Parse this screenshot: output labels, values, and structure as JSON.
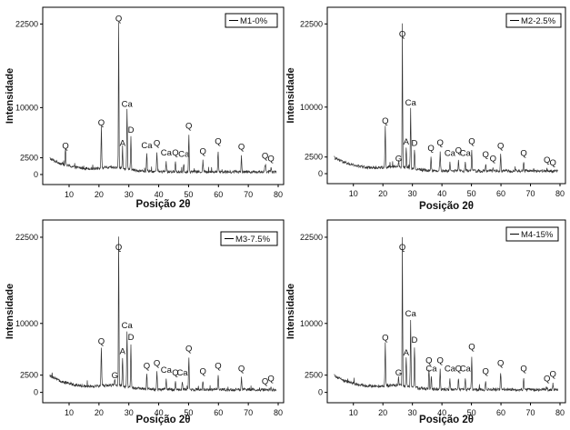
{
  "chart_data": [
    {
      "type": "line",
      "legend": "M1-0%",
      "xlabel": "Posição 2θ",
      "ylabel": "Intensidade",
      "xlim": [
        3,
        80
      ],
      "ylim": [
        -1500,
        25000
      ],
      "x_ticks": [
        10,
        20,
        30,
        40,
        50,
        60,
        70,
        80
      ],
      "y_ticks": [
        0,
        2500,
        10000,
        22500
      ],
      "series": [
        {
          "name": "M1-0%",
          "x": [],
          "y": []
        }
      ],
      "peaks": [
        {
          "x": 8.8,
          "y": 3300,
          "label": "Q"
        },
        {
          "x": 20.8,
          "y": 6800,
          "label": "Q"
        },
        {
          "x": 26.6,
          "y": 22500,
          "label": "Q"
        },
        {
          "x": 27.9,
          "y": 3700,
          "label": "A"
        },
        {
          "x": 29.4,
          "y": 9600,
          "label": "Ca"
        },
        {
          "x": 30.7,
          "y": 5700,
          "label": "D"
        },
        {
          "x": 36.0,
          "y": 3400,
          "label": "Ca"
        },
        {
          "x": 39.4,
          "y": 3700,
          "label": "Q"
        },
        {
          "x": 42.5,
          "y": 2300,
          "label": "Ca"
        },
        {
          "x": 45.6,
          "y": 2300,
          "label": "Q"
        },
        {
          "x": 48.4,
          "y": 2100,
          "label": "Ca"
        },
        {
          "x": 50.1,
          "y": 6300,
          "label": "Q"
        },
        {
          "x": 54.8,
          "y": 2500,
          "label": "Q"
        },
        {
          "x": 59.9,
          "y": 4000,
          "label": "Q"
        },
        {
          "x": 67.7,
          "y": 3200,
          "label": "Q"
        },
        {
          "x": 75.6,
          "y": 1800,
          "label": "Q"
        },
        {
          "x": 77.6,
          "y": 1400,
          "label": "Q"
        }
      ]
    },
    {
      "type": "line",
      "legend": "M2-2.5%",
      "xlabel": "Posição 2θ",
      "ylabel": "Intensidade",
      "xlim": [
        3,
        80
      ],
      "ylim": [
        -1500,
        25000
      ],
      "x_ticks": [
        10,
        20,
        30,
        40,
        50,
        60,
        70,
        80
      ],
      "y_ticks": [
        0,
        2500,
        10000,
        22500
      ],
      "series": [
        {
          "name": "M2-2.5%",
          "x": [],
          "y": []
        }
      ],
      "peaks": [
        {
          "x": 20.8,
          "y": 7000,
          "label": "Q"
        },
        {
          "x": 25.3,
          "y": 1300,
          "label": "G"
        },
        {
          "x": 26.6,
          "y": 22500,
          "label": "Q"
        },
        {
          "x": 27.9,
          "y": 3800,
          "label": "A"
        },
        {
          "x": 29.4,
          "y": 9700,
          "label": "Ca"
        },
        {
          "x": 30.7,
          "y": 3600,
          "label": "D"
        },
        {
          "x": 36.3,
          "y": 2900,
          "label": "Q"
        },
        {
          "x": 39.4,
          "y": 3700,
          "label": "Q"
        },
        {
          "x": 42.7,
          "y": 2100,
          "label": "Ca"
        },
        {
          "x": 45.6,
          "y": 2500,
          "label": "Q"
        },
        {
          "x": 47.9,
          "y": 2100,
          "label": "Ca"
        },
        {
          "x": 50.1,
          "y": 3900,
          "label": "Q"
        },
        {
          "x": 54.8,
          "y": 1900,
          "label": "Q"
        },
        {
          "x": 57.3,
          "y": 1300,
          "label": "Q"
        },
        {
          "x": 59.9,
          "y": 3200,
          "label": "Q"
        },
        {
          "x": 67.7,
          "y": 2100,
          "label": "Q"
        },
        {
          "x": 75.6,
          "y": 1100,
          "label": "Q"
        },
        {
          "x": 77.6,
          "y": 700,
          "label": "Q"
        }
      ]
    },
    {
      "type": "line",
      "legend": "M3-7.5%",
      "xlabel": "Posição 2θ",
      "ylabel": "Intensidade",
      "xlim": [
        3,
        80
      ],
      "ylim": [
        -1500,
        25000
      ],
      "x_ticks": [
        10,
        20,
        30,
        40,
        50,
        60,
        70,
        80
      ],
      "y_ticks": [
        0,
        2500,
        10000,
        22500
      ],
      "series": [
        {
          "name": "M3-7.5%",
          "x": [],
          "y": []
        }
      ],
      "peaks": [
        {
          "x": 20.8,
          "y": 6500,
          "label": "Q"
        },
        {
          "x": 25.3,
          "y": 1500,
          "label": "G"
        },
        {
          "x": 26.6,
          "y": 22500,
          "label": "Q"
        },
        {
          "x": 27.9,
          "y": 5000,
          "label": "A"
        },
        {
          "x": 29.4,
          "y": 8800,
          "label": "Ca"
        },
        {
          "x": 30.7,
          "y": 7100,
          "label": "D"
        },
        {
          "x": 36.0,
          "y": 2900,
          "label": "Q"
        },
        {
          "x": 39.4,
          "y": 3300,
          "label": "Q"
        },
        {
          "x": 42.5,
          "y": 2300,
          "label": "Ca"
        },
        {
          "x": 45.6,
          "y": 1900,
          "label": "Q"
        },
        {
          "x": 47.9,
          "y": 1900,
          "label": "Ca"
        },
        {
          "x": 50.1,
          "y": 5400,
          "label": "Q"
        },
        {
          "x": 54.8,
          "y": 2100,
          "label": "Q"
        },
        {
          "x": 59.9,
          "y": 2900,
          "label": "Q"
        },
        {
          "x": 67.7,
          "y": 2500,
          "label": "Q"
        },
        {
          "x": 75.6,
          "y": 700,
          "label": "Q"
        },
        {
          "x": 77.6,
          "y": 1100,
          "label": "Q"
        }
      ]
    },
    {
      "type": "line",
      "legend": "M4-15%",
      "xlabel": "Posição 2θ",
      "ylabel": "Intensidade",
      "xlim": [
        3,
        80
      ],
      "ylim": [
        -1500,
        25000
      ],
      "x_ticks": [
        10,
        20,
        30,
        40,
        50,
        60,
        70,
        80
      ],
      "y_ticks": [
        0,
        2500,
        10000,
        22500
      ],
      "series": [
        {
          "name": "M4-15%",
          "x": [],
          "y": []
        }
      ],
      "peaks": [
        {
          "x": 20.8,
          "y": 7000,
          "label": "Q"
        },
        {
          "x": 25.3,
          "y": 1900,
          "label": "G"
        },
        {
          "x": 26.6,
          "y": 22500,
          "label": "Q"
        },
        {
          "x": 27.9,
          "y": 4800,
          "label": "A"
        },
        {
          "x": 29.4,
          "y": 10500,
          "label": "Ca"
        },
        {
          "x": 30.7,
          "y": 6700,
          "label": "D"
        },
        {
          "x": 35.6,
          "y": 3700,
          "label": "Q"
        },
        {
          "x": 36.4,
          "y": 2500,
          "label": "Ca"
        },
        {
          "x": 39.4,
          "y": 3700,
          "label": "Q"
        },
        {
          "x": 42.7,
          "y": 2500,
          "label": "Ca"
        },
        {
          "x": 45.6,
          "y": 2500,
          "label": "Q"
        },
        {
          "x": 47.9,
          "y": 2500,
          "label": "Ca"
        },
        {
          "x": 50.1,
          "y": 5700,
          "label": "Q"
        },
        {
          "x": 54.8,
          "y": 2100,
          "label": "Q"
        },
        {
          "x": 59.9,
          "y": 3300,
          "label": "Q"
        },
        {
          "x": 67.7,
          "y": 2500,
          "label": "Q"
        },
        {
          "x": 75.6,
          "y": 1100,
          "label": "Q"
        },
        {
          "x": 77.6,
          "y": 1700,
          "label": "Q"
        }
      ]
    }
  ]
}
